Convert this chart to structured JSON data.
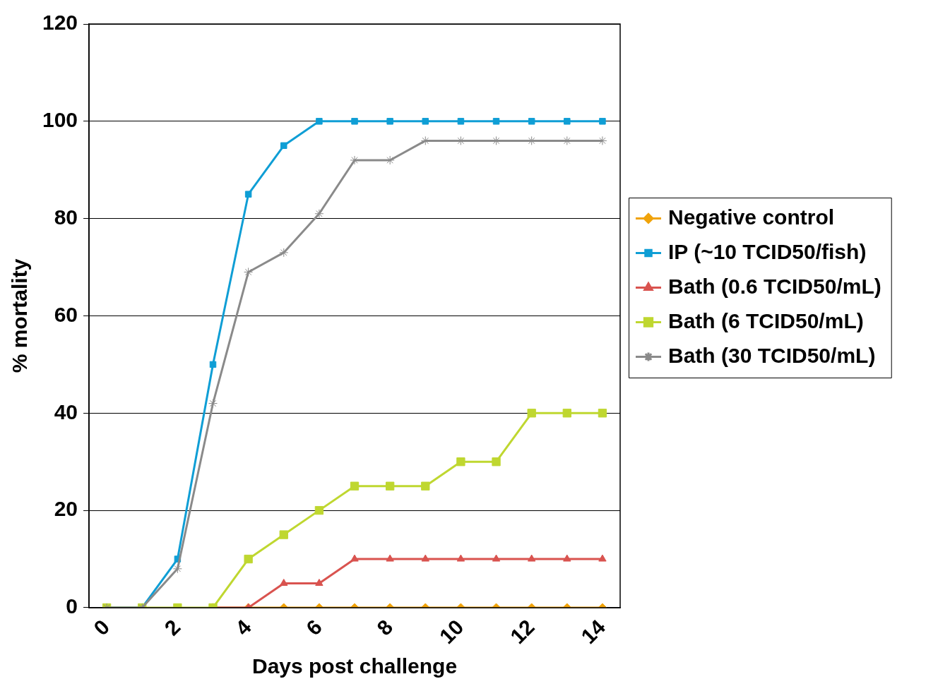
{
  "chart_data": {
    "type": "line",
    "xlabel": "Days post challenge",
    "ylabel": "% mortality",
    "x": [
      0,
      1,
      2,
      3,
      4,
      5,
      6,
      7,
      8,
      9,
      10,
      11,
      12,
      13,
      14
    ],
    "xlim": [
      -0.5,
      14.5
    ],
    "xticks": [
      0,
      2,
      4,
      6,
      8,
      10,
      12,
      14
    ],
    "ylim": [
      0,
      120
    ],
    "yticks": [
      0,
      20,
      40,
      60,
      80,
      100,
      120
    ],
    "grid": "y",
    "legend": "right",
    "series": [
      {
        "name": "Negative control",
        "color": "#f0a30a",
        "marker": "diamond",
        "values": [
          null,
          null,
          null,
          0,
          0,
          0,
          0,
          0,
          0,
          0,
          0,
          0,
          0,
          0,
          0
        ]
      },
      {
        "name": "IP (~10 TCID50/fish)",
        "color": "#0f9ed5",
        "marker": "square",
        "values": [
          0,
          0,
          10,
          50,
          85,
          95,
          100,
          100,
          100,
          100,
          100,
          100,
          100,
          100,
          100
        ]
      },
      {
        "name": "Bath (0.6 TCID50/mL)",
        "color": "#d9534f",
        "marker": "triangle",
        "values": [
          null,
          null,
          null,
          0,
          0,
          5,
          5,
          10,
          10,
          10,
          10,
          10,
          10,
          10,
          10
        ]
      },
      {
        "name": "Bath (6 TCID50/mL)",
        "color": "#bfd730",
        "marker": "square",
        "values": [
          0,
          0,
          0,
          0,
          10,
          15,
          20,
          25,
          25,
          25,
          30,
          30,
          40,
          40,
          40
        ]
      },
      {
        "name": "Bath (30 TCID50/mL)",
        "color": "#8a8a8a",
        "marker": "cross",
        "values": [
          0,
          0,
          8,
          42,
          69,
          73,
          81,
          92,
          92,
          96,
          96,
          96,
          96,
          96,
          96
        ]
      }
    ]
  }
}
